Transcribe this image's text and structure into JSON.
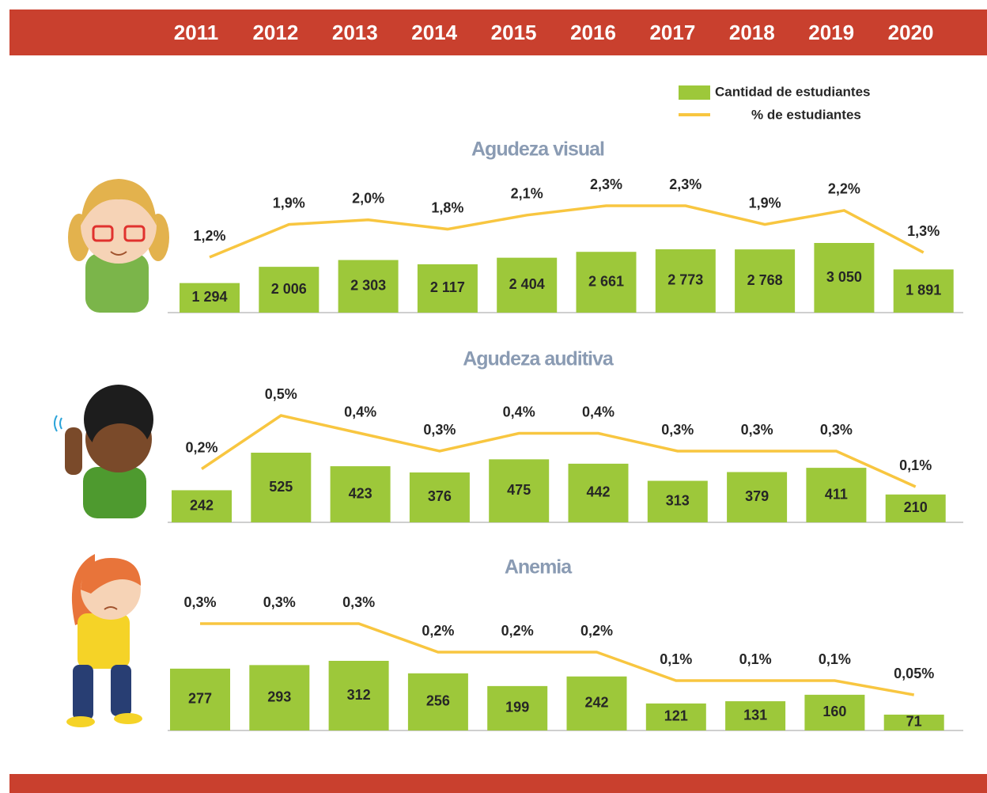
{
  "chart_data": {
    "type": "bar-line-panels",
    "categories": [
      "2011",
      "2012",
      "2013",
      "2014",
      "2015",
      "2016",
      "2017",
      "2018",
      "2019",
      "2020"
    ],
    "legend": [
      {
        "name": "Cantidad de estudiantes",
        "color": "#9dc83a"
      },
      {
        "name": "% de estudiantes",
        "color": "#f8c640"
      }
    ],
    "panels": [
      {
        "title": "Agudeza visual",
        "values": [
          1294,
          2006,
          2303,
          2117,
          2404,
          2661,
          2773,
          2768,
          3050,
          1891
        ],
        "value_labels": [
          "1 294",
          "2 006",
          "2 303",
          "2 117",
          "2 404",
          "2 661",
          "2 773",
          "2 768",
          "3 050",
          "1 891"
        ],
        "line_values": [
          1.2,
          1.9,
          2.0,
          1.8,
          2.1,
          2.3,
          2.3,
          1.9,
          2.2,
          1.3
        ],
        "line_value_labels": [
          "1,2%",
          "1,9%",
          "2,0%",
          "1,8%",
          "2,1%",
          "2,3%",
          "2,3%",
          "1,9%",
          "2,2%",
          "1,3%"
        ]
      },
      {
        "title": "Agudeza auditiva",
        "values": [
          242,
          525,
          423,
          376,
          475,
          442,
          313,
          379,
          411,
          210
        ],
        "line_values": [
          0.2,
          0.5,
          0.4,
          0.3,
          0.4,
          0.4,
          0.3,
          0.3,
          0.3,
          0.1
        ],
        "line_value_labels": [
          "0,2%",
          "0,5%",
          "0,4%",
          "0,3%",
          "0,4%",
          "0,4%",
          "0,3%",
          "0,3%",
          "0,3%",
          "0,1%"
        ]
      },
      {
        "title": "Anemia",
        "values": [
          277,
          293,
          312,
          256,
          199,
          242,
          121,
          131,
          160,
          71
        ],
        "line_values": [
          0.3,
          0.3,
          0.3,
          0.2,
          0.2,
          0.2,
          0.1,
          0.1,
          0.1,
          0.05
        ],
        "line_value_labels": [
          "0,3%",
          "0,3%",
          "0,3%",
          "0,2%",
          "0,2%",
          "0,2%",
          "0,1%",
          "0,1%",
          "0,1%",
          "0,05%"
        ]
      }
    ]
  }
}
